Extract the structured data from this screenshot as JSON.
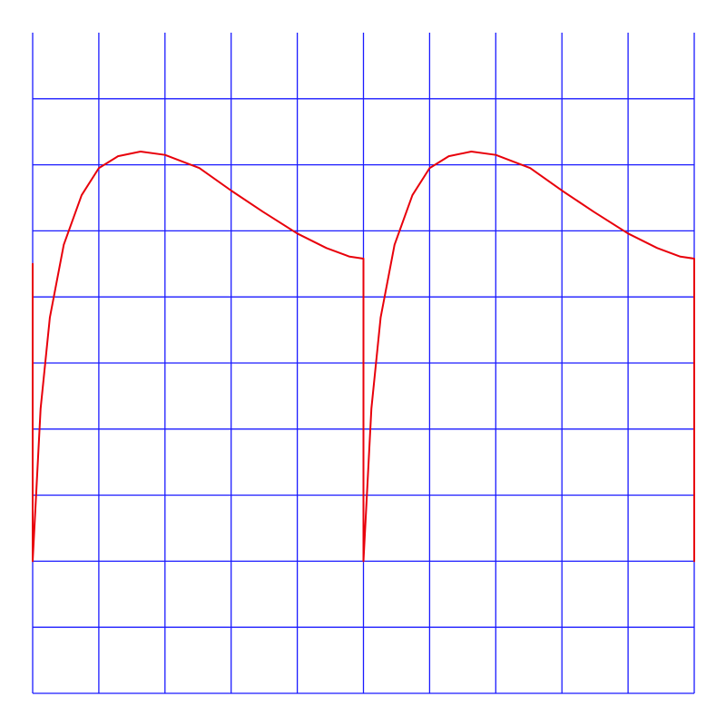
{
  "chart_data": {
    "type": "line",
    "x": [
      0,
      0,
      0.12,
      0.26,
      0.47,
      0.74,
      1,
      1.29,
      1.63,
      2,
      2.52,
      3,
      3.48,
      4,
      4.44,
      4.79,
      5,
      5,
      5.12,
      5.26,
      5.47,
      5.74,
      6,
      6.29,
      6.63,
      7,
      7.52,
      8,
      8.48,
      9,
      9.44,
      9.79,
      10,
      10
    ],
    "values": [
      6.5,
      2,
      4.31,
      5.69,
      6.79,
      7.54,
      7.95,
      8.13,
      8.2,
      8.15,
      7.95,
      7.61,
      7.29,
      6.96,
      6.74,
      6.61,
      6.58,
      2,
      4.31,
      5.69,
      6.79,
      7.54,
      7.95,
      8.13,
      8.2,
      8.15,
      7.95,
      7.61,
      7.29,
      6.96,
      6.74,
      6.61,
      6.58,
      2
    ],
    "color": "#e8000b",
    "grid_color": "#1a1aff",
    "xlim": [
      0,
      10
    ],
    "ylim": [
      0,
      10
    ],
    "xticks": [
      0,
      1,
      2,
      3,
      4,
      5,
      6,
      7,
      8,
      9,
      10
    ],
    "yticks": [
      0,
      1,
      2,
      3,
      4,
      5,
      6,
      7,
      8,
      9
    ],
    "grid": true
  }
}
